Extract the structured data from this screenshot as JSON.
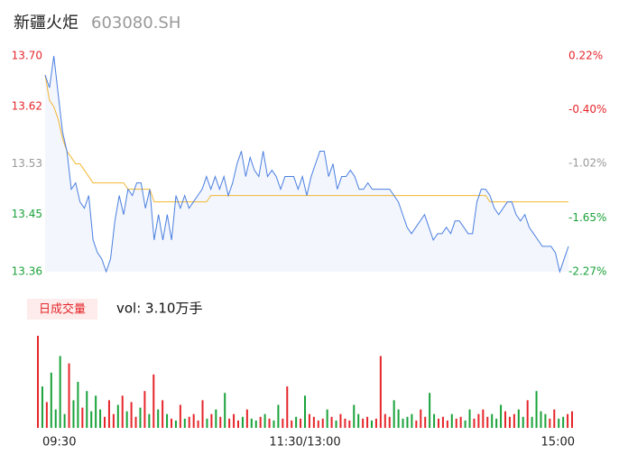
{
  "header": {
    "title": "新疆火炬",
    "code": "603080.SH"
  },
  "chart_data": [
    {
      "type": "line",
      "x": [
        0,
        2,
        4,
        6,
        8,
        10,
        12,
        14,
        16,
        18,
        20,
        22,
        24,
        26,
        28,
        30,
        32,
        34,
        36,
        38,
        40,
        42,
        44,
        46,
        48,
        50,
        52,
        54,
        56,
        58,
        60,
        62,
        64,
        66,
        68,
        70,
        72,
        74,
        76,
        78,
        80,
        82,
        84,
        86,
        88,
        90,
        92,
        94,
        96,
        98,
        100,
        102,
        104,
        106,
        108,
        110,
        112,
        114,
        116,
        118,
        120,
        122,
        124,
        126,
        128,
        130,
        132,
        134,
        136,
        138,
        140,
        142,
        144,
        146,
        148,
        150,
        152,
        154,
        156,
        158,
        160,
        162,
        164,
        166,
        168,
        170,
        172,
        174,
        176,
        178,
        180,
        182,
        184,
        186,
        188,
        190,
        192,
        194,
        196,
        198,
        200,
        202,
        204,
        206,
        208,
        210,
        212,
        214,
        216,
        218,
        220,
        222,
        224,
        226,
        228,
        230,
        232,
        234,
        236,
        238,
        240
      ],
      "series": [
        {
          "name": "price",
          "color": "#4a7fe0",
          "values": [
            13.67,
            13.65,
            13.7,
            13.64,
            13.58,
            13.55,
            13.49,
            13.5,
            13.47,
            13.46,
            13.48,
            13.41,
            13.39,
            13.38,
            13.36,
            13.38,
            13.44,
            13.48,
            13.45,
            13.49,
            13.48,
            13.5,
            13.5,
            13.46,
            13.49,
            13.41,
            13.45,
            13.41,
            13.45,
            13.41,
            13.48,
            13.46,
            13.48,
            13.46,
            13.47,
            13.48,
            13.49,
            13.51,
            13.49,
            13.51,
            13.49,
            13.51,
            13.48,
            13.5,
            13.53,
            13.55,
            13.51,
            13.54,
            13.52,
            13.51,
            13.55,
            13.51,
            13.52,
            13.51,
            13.49,
            13.51,
            13.51,
            13.51,
            13.49,
            13.51,
            13.48,
            13.51,
            13.53,
            13.55,
            13.55,
            13.51,
            13.53,
            13.49,
            13.51,
            13.51,
            13.52,
            13.51,
            13.49,
            13.49,
            13.5,
            13.49,
            13.49,
            13.49,
            13.49,
            13.49,
            13.48,
            13.47,
            13.45,
            13.43,
            13.42,
            13.43,
            13.44,
            13.45,
            13.43,
            13.41,
            13.42,
            13.42,
            13.43,
            13.42,
            13.44,
            13.44,
            13.43,
            13.42,
            13.42,
            13.47,
            13.49,
            13.49,
            13.48,
            13.46,
            13.45,
            13.46,
            13.47,
            13.47,
            13.45,
            13.44,
            13.45,
            13.43,
            13.42,
            13.41,
            13.4,
            13.4,
            13.4,
            13.39,
            13.36,
            13.38,
            13.4
          ]
        },
        {
          "name": "average",
          "color": "#f2b632",
          "values": [
            13.67,
            13.63,
            13.62,
            13.6,
            13.57,
            13.55,
            13.54,
            13.53,
            13.53,
            13.52,
            13.51,
            13.5,
            13.5,
            13.5,
            13.5,
            13.5,
            13.5,
            13.5,
            13.5,
            13.49,
            13.49,
            13.49,
            13.49,
            13.49,
            13.49,
            13.47,
            13.47,
            13.47,
            13.47,
            13.47,
            13.47,
            13.47,
            13.47,
            13.47,
            13.47,
            13.47,
            13.47,
            13.47,
            13.48,
            13.48,
            13.48,
            13.48,
            13.48,
            13.48,
            13.48,
            13.48,
            13.48,
            13.48,
            13.48,
            13.48,
            13.48,
            13.48,
            13.48,
            13.48,
            13.48,
            13.48,
            13.48,
            13.48,
            13.48,
            13.48,
            13.48,
            13.48,
            13.48,
            13.48,
            13.48,
            13.48,
            13.48,
            13.48,
            13.48,
            13.48,
            13.48,
            13.48,
            13.48,
            13.48,
            13.48,
            13.48,
            13.48,
            13.48,
            13.48,
            13.48,
            13.48,
            13.48,
            13.48,
            13.48,
            13.48,
            13.48,
            13.48,
            13.48,
            13.48,
            13.48,
            13.48,
            13.48,
            13.48,
            13.48,
            13.48,
            13.48,
            13.48,
            13.48,
            13.48,
            13.48,
            13.48,
            13.48,
            13.47,
            13.47,
            13.47,
            13.47,
            13.47,
            13.47,
            13.47,
            13.47,
            13.47,
            13.47,
            13.47,
            13.47,
            13.47,
            13.47,
            13.47,
            13.47,
            13.47,
            13.47,
            13.47
          ]
        }
      ],
      "xlim": [
        0,
        240
      ],
      "ylim": [
        13.36,
        13.7
      ],
      "yticks": [
        {
          "value": 13.7,
          "label": "13.70"
        },
        13.62,
        13.53,
        13.45,
        13.36
      ],
      "ytick_colors": [
        "#e5262b",
        "#e5262b",
        "#999999",
        "#1aa23a",
        "#1aa23a"
      ],
      "y2lim": [
        -2.27,
        0.22
      ],
      "y2ticks": [
        {
          "value": 0.22,
          "label": "0.22%"
        },
        {
          "value": -0.4,
          "label": "-0.40%"
        },
        {
          "value": -1.02,
          "label": "-1.02%"
        },
        {
          "value": -1.65,
          "label": "-1.65%"
        },
        {
          "value": -2.27,
          "label": "-2.27%"
        }
      ],
      "y2tick_colors": [
        "#e5262b",
        "#e5262b",
        "#999999",
        "#1aa23a",
        "#1aa23a"
      ],
      "fill": "#f3f6fd"
    },
    {
      "type": "volume",
      "label": "日成交量",
      "summary": "vol: 3.10万手",
      "up_color": "#e5262b",
      "down_color": "#1aa23a",
      "values": [
        100,
        45,
        28,
        60,
        20,
        78,
        15,
        70,
        30,
        50,
        22,
        40,
        18,
        35,
        20,
        12,
        30,
        15,
        25,
        35,
        18,
        28,
        12,
        22,
        40,
        15,
        58,
        20,
        30,
        15,
        10,
        8,
        25,
        10,
        12,
        15,
        8,
        30,
        10,
        15,
        20,
        12,
        38,
        10,
        15,
        8,
        12,
        20,
        10,
        8,
        12,
        15,
        10,
        8,
        25,
        10,
        45,
        8,
        12,
        10,
        35,
        15,
        12,
        8,
        10,
        20,
        12,
        8,
        15,
        10,
        8,
        25,
        15,
        10,
        12,
        8,
        10,
        78,
        15,
        12,
        30,
        20,
        10,
        12,
        15,
        8,
        20,
        12,
        38,
        15,
        10,
        12,
        8,
        15,
        10,
        12,
        8,
        20,
        10,
        15,
        20,
        12,
        15,
        10,
        25,
        18,
        12,
        15,
        20,
        12,
        30,
        12,
        40,
        18,
        15,
        10,
        20,
        10,
        12,
        15,
        18
      ],
      "ylim": [
        0,
        100
      ],
      "xlim": [
        0,
        240
      ],
      "xticks": [
        {
          "value": 0,
          "label": "09:30"
        },
        {
          "value": 120,
          "label": "11:30/13:00"
        },
        {
          "value": 240,
          "label": "15:00"
        }
      ]
    }
  ]
}
